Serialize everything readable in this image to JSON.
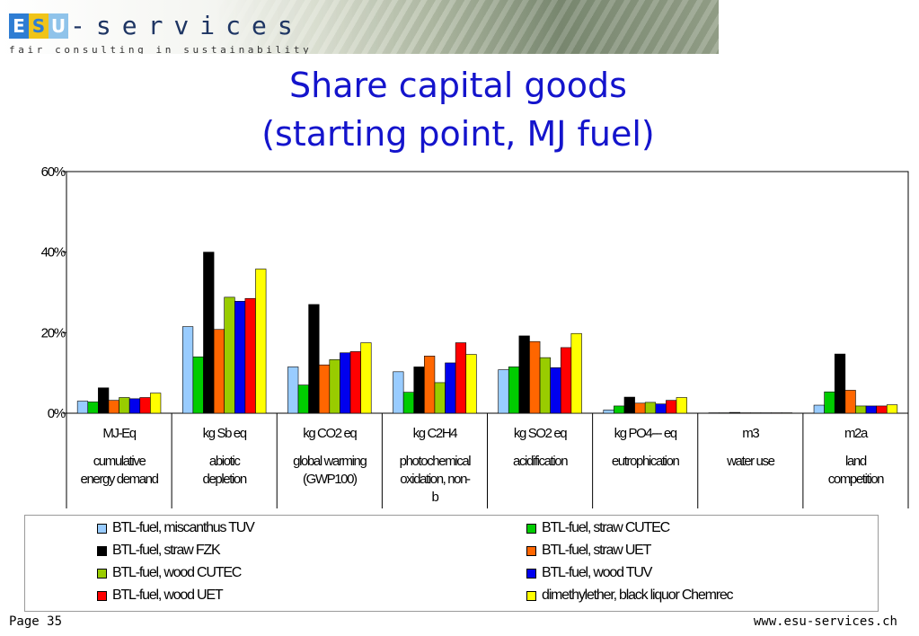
{
  "brand": {
    "logo_tiles": [
      "E",
      "S",
      "U"
    ],
    "logo_text": "-services",
    "tagline": "fair consulting in sustainability"
  },
  "slide": {
    "title_line1": "Share capital goods",
    "title_line2": "(starting point, MJ fuel)",
    "footer_page": "Page 35",
    "footer_url": "www.esu-services.ch"
  },
  "chart_data": {
    "type": "bar",
    "y_ticks": [
      "0%",
      "20%",
      "40%",
      "60%"
    ],
    "ylim": [
      0,
      60
    ],
    "grid": false,
    "legend_position": "bottom",
    "categories": [
      {
        "unit": "MJ-Eq",
        "name": [
          "cumulative",
          "energy demand"
        ]
      },
      {
        "unit": "kg Sb eq",
        "name": [
          "abiotic",
          "depletion"
        ]
      },
      {
        "unit": "kg CO2 eq",
        "name": [
          "global warming",
          "(GWP100)"
        ]
      },
      {
        "unit": "kg C2H4",
        "name": [
          "photochemical",
          "oxidation, non-",
          "b"
        ]
      },
      {
        "unit": "kg SO2 eq",
        "name": [
          "acidification"
        ]
      },
      {
        "unit": "kg PO4--- eq",
        "name": [
          "eutrophication"
        ]
      },
      {
        "unit": "m3",
        "name": [
          "water use"
        ]
      },
      {
        "unit": "m2a",
        "name": [
          "land",
          "competition"
        ]
      }
    ],
    "series": [
      {
        "name": "BTL-fuel, miscanthus TUV",
        "color": "#99ccff",
        "values": [
          3,
          21.5,
          11.5,
          10.3,
          10.8,
          0.8,
          0.1,
          2
        ]
      },
      {
        "name": "BTL-fuel, straw CUTEC",
        "color": "#00cc00",
        "values": [
          2.8,
          14,
          7,
          5.2,
          11.5,
          1.8,
          0.1,
          5.3
        ]
      },
      {
        "name": "BTL-fuel, straw FZK",
        "color": "#000000",
        "values": [
          6.3,
          40,
          27,
          11.5,
          19.2,
          4,
          0.2,
          14.7
        ]
      },
      {
        "name": "BTL-fuel, straw UET",
        "color": "#ff6600",
        "values": [
          3.2,
          20.8,
          12,
          14.2,
          17.8,
          2.5,
          0.1,
          5.7
        ]
      },
      {
        "name": "BTL-fuel, wood CUTEC",
        "color": "#99cc00",
        "values": [
          3.9,
          28.8,
          13.3,
          7.6,
          13.8,
          2.7,
          0.1,
          1.8
        ]
      },
      {
        "name": "BTL-fuel, wood TUV",
        "color": "#0000ee",
        "values": [
          3.6,
          27.8,
          15,
          12.5,
          11.3,
          2.3,
          0.1,
          1.8
        ]
      },
      {
        "name": "BTL-fuel, wood UET",
        "color": "#ff0000",
        "values": [
          3.9,
          28.5,
          15.3,
          17.5,
          16.3,
          3.2,
          0.1,
          1.8
        ]
      },
      {
        "name": "dimethylether, black liquor Chemrec",
        "color": "#ffff00",
        "values": [
          5,
          35.8,
          17.5,
          14.6,
          19.8,
          3.9,
          0.1,
          2.1
        ]
      }
    ]
  }
}
